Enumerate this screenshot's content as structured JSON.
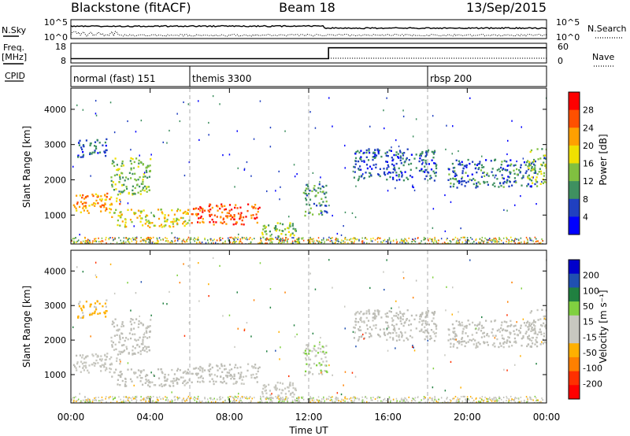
{
  "header": {
    "station": "Blackstone (fitACF)",
    "beam": "Beam 18",
    "date": "13/Sep/2015"
  },
  "top_labels": {
    "nsky": "N.Sky",
    "nsearch": "N.Search",
    "freq_line1": "Freq.",
    "freq_line2": "[MHz]",
    "nave": "Nave",
    "cpid": "CPID"
  },
  "nsky_ticks": {
    "top": "10^5",
    "bottom": "10^0"
  },
  "freq_ticks": {
    "top": "18",
    "bottom": "8"
  },
  "nave_ticks": {
    "top": "60",
    "bottom": "0"
  },
  "cpid_segments": [
    {
      "label": "normal (fast) 151",
      "start_hour": 0
    },
    {
      "label": "themis 3300",
      "start_hour": 6
    },
    {
      "label": "rbsp 200",
      "start_hour": 18
    }
  ],
  "panels": {
    "power": {
      "ylabel": "Slant Range [km]",
      "cbar_label": "Power [dB]",
      "cbar_ticks": [
        "28",
        "24",
        "20",
        "16",
        "12",
        "8",
        "4"
      ]
    },
    "velocity": {
      "ylabel": "Slant Range [km]",
      "cbar_label": "Velocity [m s⁻¹]",
      "cbar_ticks": [
        "200",
        "100",
        "50",
        "15",
        "-15",
        "-50",
        "-100",
        "-200"
      ]
    }
  },
  "colors": {
    "power_scale": [
      "#0000ff",
      "#2040c0",
      "#3f9060",
      "#80c040",
      "#f0e000",
      "#ffa000",
      "#ff5000",
      "#ff0000"
    ],
    "velocity_scale": [
      "#0000cc",
      "#2050b0",
      "#208040",
      "#80d040",
      "#c8c8c0",
      "#c8c8c0",
      "#ffb000",
      "#ff8000",
      "#ff3000",
      "#ff0000"
    ],
    "ground_scatter": "#bdbdb6"
  },
  "chart_data": {
    "type": "heatmap",
    "title": "Blackstone (fitACF) Beam 18 13/Sep/2015",
    "xlabel": "Time UT",
    "x_ticks": [
      "00:00",
      "04:00",
      "08:00",
      "12:00",
      "16:00",
      "20:00",
      "00:00"
    ],
    "xlim_hours": [
      0,
      24
    ],
    "y_ticks": [
      1000,
      2000,
      3000,
      4000
    ],
    "ylim_km": [
      180,
      4600
    ],
    "ylabel": "Slant Range [km]",
    "power_range_db": [
      0,
      32
    ],
    "velocity_range": [
      -250,
      250
    ],
    "dashed_gridlines_hours": [
      6,
      12,
      18
    ],
    "freq_mhz": [
      {
        "from_hour": 0,
        "to_hour": 13,
        "value": 10.5
      },
      {
        "from_hour": 13,
        "to_hour": 24,
        "value": 16.8
      }
    ],
    "scatter_regions": [
      {
        "t0": 0.0,
        "t1": 2.5,
        "r0": 1080,
        "r1": 1640,
        "power": 22,
        "velocity": -30
      },
      {
        "t0": 2.0,
        "t1": 4.0,
        "r0": 1600,
        "r1": 2650,
        "power": 13,
        "velocity": 0
      },
      {
        "t0": 0.3,
        "t1": 1.8,
        "r0": 2650,
        "r1": 3200,
        "power": 7,
        "velocity": -60
      },
      {
        "t0": 2.0,
        "t1": 6.0,
        "r0": 680,
        "r1": 1200,
        "power": 18,
        "velocity": 0
      },
      {
        "t0": 6.0,
        "t1": 9.5,
        "r0": 750,
        "r1": 1350,
        "power": 26,
        "velocity": 0
      },
      {
        "t0": 9.5,
        "t1": 11.5,
        "r0": 200,
        "r1": 800,
        "power": 14,
        "velocity": 30
      },
      {
        "t0": 11.7,
        "t1": 12.9,
        "r0": 1000,
        "r1": 1900,
        "power": 10,
        "velocity": 40
      },
      {
        "t0": 14.2,
        "t1": 18.5,
        "r0": 2000,
        "r1": 2900,
        "power": 7,
        "velocity": 0
      },
      {
        "t0": 19.0,
        "t1": 23.5,
        "r0": 1800,
        "r1": 2600,
        "power": 8,
        "velocity": 0
      },
      {
        "t0": 23.0,
        "t1": 24.0,
        "r0": 1900,
        "r1": 2900,
        "power": 15,
        "velocity": 0
      }
    ]
  }
}
